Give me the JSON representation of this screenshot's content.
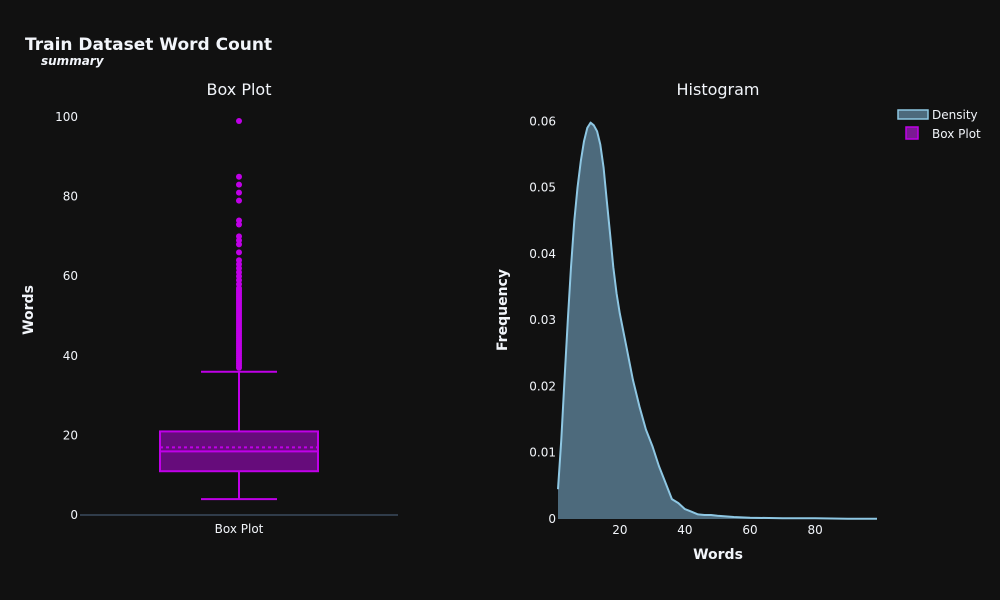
{
  "figure": {
    "title": "Train Dataset Word Count",
    "subtitle": "summary",
    "background": "#111111",
    "text_color": "#f2f5fa"
  },
  "chart_data": [
    {
      "type": "box",
      "title": "Box Plot",
      "category": "Box Plot",
      "ylabel": "Words",
      "ylim": [
        0,
        100
      ],
      "yticks": [
        0,
        20,
        40,
        60,
        80,
        100
      ],
      "stats": {
        "min": 4,
        "q1": 11,
        "median": 16,
        "mean": 17,
        "q3": 21,
        "upper_fence": 36
      },
      "outliers": [
        37,
        37.5,
        38,
        38.5,
        39,
        39.5,
        40,
        40.5,
        41,
        41.5,
        42,
        42.5,
        43,
        43.5,
        44,
        44.5,
        45,
        45.5,
        46,
        46.5,
        47,
        47.5,
        48,
        48.5,
        49,
        49.5,
        50,
        50.5,
        51,
        51.5,
        52,
        52.5,
        53,
        53.5,
        54,
        54.5,
        55,
        55.5,
        56,
        56.5,
        57,
        58,
        59,
        60,
        61,
        62,
        63,
        64,
        66,
        68,
        69,
        70,
        73,
        74,
        79,
        81,
        83,
        85,
        99
      ],
      "color": "#c000e8"
    },
    {
      "type": "area",
      "title": "Histogram",
      "xlabel": "Words",
      "ylabel": "Frequency",
      "xlim": [
        1,
        99
      ],
      "ylim": [
        0,
        0.0605
      ],
      "xticks": [
        20,
        40,
        60,
        80
      ],
      "yticks": [
        0,
        0.01,
        0.02,
        0.03,
        0.04,
        0.05,
        0.06
      ],
      "ytick_labels": [
        "0",
        "0.01",
        "0.02",
        "0.03",
        "0.04",
        "0.05",
        "0.06"
      ],
      "x": [
        1,
        2,
        3,
        4,
        5,
        6,
        7,
        8,
        9,
        10,
        11,
        12,
        13,
        14,
        15,
        16,
        17,
        18,
        19,
        20,
        22,
        24,
        26,
        28,
        30,
        32,
        34,
        36,
        38,
        40,
        42,
        44,
        46,
        48,
        50,
        55,
        60,
        70,
        80,
        90,
        99
      ],
      "y": [
        0.0045,
        0.012,
        0.021,
        0.03,
        0.038,
        0.045,
        0.05,
        0.054,
        0.057,
        0.059,
        0.0598,
        0.0594,
        0.0585,
        0.0565,
        0.053,
        0.048,
        0.043,
        0.038,
        0.034,
        0.031,
        0.026,
        0.021,
        0.017,
        0.0135,
        0.011,
        0.008,
        0.0055,
        0.003,
        0.0024,
        0.0015,
        0.0011,
        0.0007,
        0.0006,
        0.0006,
        0.0005,
        0.0003,
        0.0002,
        0.0001,
        0.0001,
        5e-05,
        5e-05
      ],
      "fill": "#4d6a7c",
      "line": "#8ec7e3"
    }
  ],
  "legend": {
    "position": "top-right",
    "items": [
      {
        "label": "Density",
        "color": "#6f9db6"
      },
      {
        "label": "Box Plot",
        "color": "#c000e8"
      }
    ]
  }
}
